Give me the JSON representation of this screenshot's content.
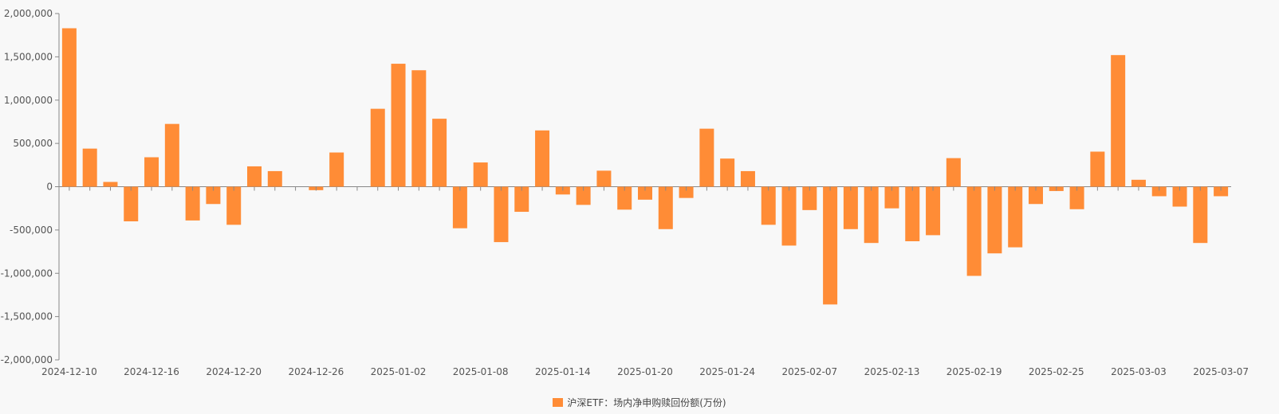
{
  "chart_data": {
    "type": "bar",
    "ylim": [
      -2000000,
      2000000
    ],
    "y_ticks": [
      "2,000,000",
      "1,500,000",
      "1,000,000",
      "500,000",
      "0",
      "-500,000",
      "-1,000,000",
      "-1,500,000",
      "-2,000,000"
    ],
    "x_tick_labels": [
      "2024-12-10",
      "2024-12-16",
      "2024-12-20",
      "2024-12-26",
      "2025-01-02",
      "2025-01-08",
      "2025-01-14",
      "2025-01-20",
      "2025-01-24",
      "2025-02-07",
      "2025-02-13",
      "2025-02-19",
      "2025-02-25",
      "2025-03-03",
      "2025-03-07"
    ],
    "bar_color": "#ff8c36",
    "series": [
      {
        "name": "沪深ETF：场内净申购赎回份额(万份)",
        "values": [
          1830000,
          440000,
          55000,
          -400000,
          340000,
          725000,
          -390000,
          -200000,
          -440000,
          235000,
          180000,
          0,
          -40000,
          395000,
          0,
          900000,
          1420000,
          1345000,
          785000,
          -480000,
          280000,
          -640000,
          -290000,
          650000,
          -90000,
          -210000,
          185000,
          -265000,
          -150000,
          -490000,
          -130000,
          670000,
          325000,
          180000,
          -440000,
          -680000,
          -270000,
          -1360000,
          -490000,
          -650000,
          -250000,
          -630000,
          -560000,
          330000,
          -1030000,
          -770000,
          -700000,
          -200000,
          -50000,
          -260000,
          405000,
          1520000,
          80000,
          -110000,
          -230000,
          -650000,
          -110000
        ]
      }
    ]
  }
}
